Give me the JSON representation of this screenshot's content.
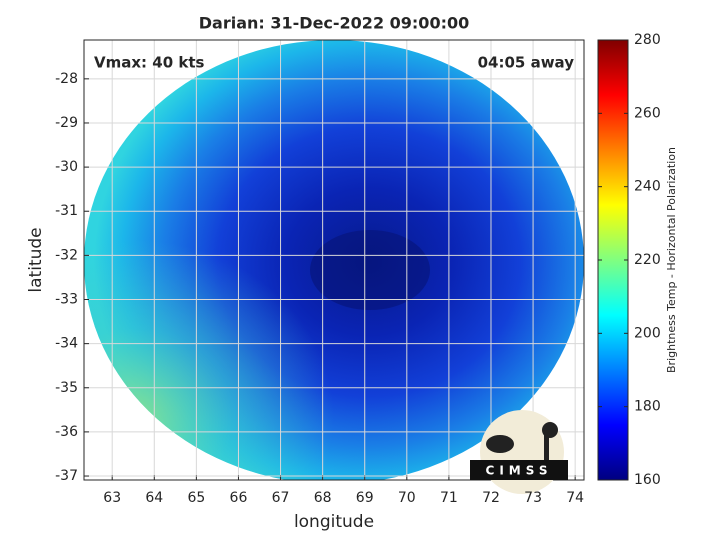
{
  "chart_data": {
    "type": "image",
    "title": "Darian: 31-Dec-2022 09:00:00",
    "annotations": [
      "Vmax: 40 kts",
      "04:05 away"
    ],
    "xlabel": "longitude",
    "ylabel": "latitude",
    "xlim": [
      62.33,
      74.21
    ],
    "xticks": [
      63,
      64,
      65,
      66,
      67,
      68,
      69,
      70,
      71,
      72,
      73,
      74
    ],
    "ylim": [
      -37.09,
      -27.12
    ],
    "yticks": [
      -37,
      -36,
      -35,
      -34,
      -33,
      -32,
      -31,
      -30,
      -29,
      -28
    ],
    "grid": true,
    "colorbar": {
      "label": "Brightness Temp - Horizontal Polarization",
      "colormap": "jet",
      "lim": [
        160,
        280
      ],
      "ticks": [
        160,
        180,
        200,
        220,
        240,
        260,
        280
      ]
    },
    "logo_text": "CIMSS"
  }
}
